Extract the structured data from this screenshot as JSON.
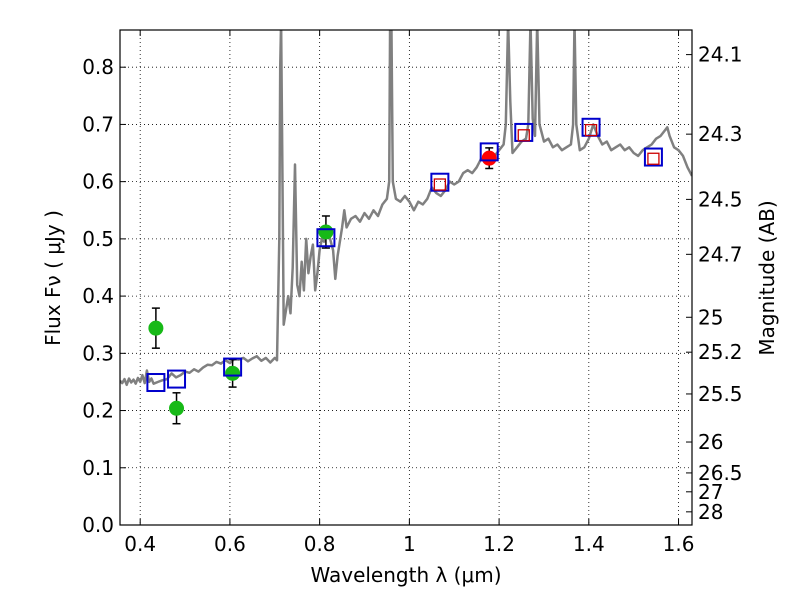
{
  "chart_data": {
    "type": "scatter",
    "xlabel": "Wavelength  λ (μm)",
    "ylabel_left": "Flux  Fν  ( μJy )",
    "ylabel_right": "Magnitude (AB)",
    "xlim": [
      0.355,
      1.63
    ],
    "ylim": [
      0.0,
      0.865
    ],
    "grid": true,
    "x_ticks": [
      0.4,
      0.6,
      0.8,
      1.0,
      1.2,
      1.4,
      1.6
    ],
    "x_tick_labels": [
      "0.4",
      "0.6",
      "0.8",
      "1",
      "1.2",
      "1.4",
      "1.6"
    ],
    "y_ticks": [
      0.0,
      0.1,
      0.2,
      0.3,
      0.4,
      0.5,
      0.6,
      0.7,
      0.8
    ],
    "y_tick_labels": [
      "0.0",
      "0.1",
      "0.2",
      "0.3",
      "0.4",
      "0.5",
      "0.6",
      "0.7",
      "0.8"
    ],
    "right_axis_ticks": [
      {
        "label": "24.1",
        "flux": 0.822
      },
      {
        "label": "24.3",
        "flux": 0.683
      },
      {
        "label": "24.5",
        "flux": 0.569
      },
      {
        "label": "24.7",
        "flux": 0.473
      },
      {
        "label": "25",
        "flux": 0.363
      },
      {
        "label": "25.2",
        "flux": 0.302
      },
      {
        "label": "25.5",
        "flux": 0.229
      },
      {
        "label": "26",
        "flux": 0.145
      },
      {
        "label": "26.5",
        "flux": 0.091
      },
      {
        "label": "27",
        "flux": 0.058
      },
      {
        "label": "28",
        "flux": 0.023
      }
    ],
    "series": [
      {
        "name": "model spectrum",
        "kind": "line",
        "color": "#808080",
        "points": [
          [
            0.355,
            0.252
          ],
          [
            0.36,
            0.248
          ],
          [
            0.365,
            0.255
          ],
          [
            0.37,
            0.245
          ],
          [
            0.375,
            0.256
          ],
          [
            0.38,
            0.249
          ],
          [
            0.385,
            0.254
          ],
          [
            0.39,
            0.247
          ],
          [
            0.395,
            0.257
          ],
          [
            0.4,
            0.25
          ],
          [
            0.405,
            0.262
          ],
          [
            0.41,
            0.248
          ],
          [
            0.415,
            0.27
          ],
          [
            0.42,
            0.25
          ],
          [
            0.425,
            0.256
          ],
          [
            0.43,
            0.247
          ],
          [
            0.44,
            0.25
          ],
          [
            0.45,
            0.253
          ],
          [
            0.46,
            0.255
          ],
          [
            0.47,
            0.265
          ],
          [
            0.48,
            0.258
          ],
          [
            0.49,
            0.262
          ],
          [
            0.5,
            0.268
          ],
          [
            0.51,
            0.266
          ],
          [
            0.52,
            0.272
          ],
          [
            0.53,
            0.268
          ],
          [
            0.54,
            0.275
          ],
          [
            0.55,
            0.28
          ],
          [
            0.56,
            0.279
          ],
          [
            0.57,
            0.285
          ],
          [
            0.58,
            0.282
          ],
          [
            0.59,
            0.288
          ],
          [
            0.6,
            0.283
          ],
          [
            0.61,
            0.29
          ],
          [
            0.62,
            0.289
          ],
          [
            0.63,
            0.292
          ],
          [
            0.64,
            0.286
          ],
          [
            0.65,
            0.291
          ],
          [
            0.66,
            0.295
          ],
          [
            0.67,
            0.287
          ],
          [
            0.68,
            0.292
          ],
          [
            0.69,
            0.284
          ],
          [
            0.7,
            0.292
          ],
          [
            0.705,
            0.288
          ],
          [
            0.71,
            0.5
          ],
          [
            0.712,
            0.8
          ],
          [
            0.714,
            0.88
          ],
          [
            0.716,
            0.7
          ],
          [
            0.72,
            0.35
          ],
          [
            0.73,
            0.4
          ],
          [
            0.735,
            0.37
          ],
          [
            0.74,
            0.45
          ],
          [
            0.745,
            0.63
          ],
          [
            0.75,
            0.42
          ],
          [
            0.755,
            0.4
          ],
          [
            0.76,
            0.46
          ],
          [
            0.765,
            0.41
          ],
          [
            0.77,
            0.5
          ],
          [
            0.775,
            0.44
          ],
          [
            0.78,
            0.47
          ],
          [
            0.785,
            0.49
          ],
          [
            0.79,
            0.41
          ],
          [
            0.795,
            0.44
          ],
          [
            0.8,
            0.48
          ],
          [
            0.805,
            0.5
          ],
          [
            0.81,
            0.495
          ],
          [
            0.82,
            0.51
          ],
          [
            0.83,
            0.48
          ],
          [
            0.835,
            0.43
          ],
          [
            0.84,
            0.47
          ],
          [
            0.85,
            0.52
          ],
          [
            0.855,
            0.55
          ],
          [
            0.86,
            0.52
          ],
          [
            0.87,
            0.535
          ],
          [
            0.88,
            0.54
          ],
          [
            0.89,
            0.53
          ],
          [
            0.9,
            0.545
          ],
          [
            0.91,
            0.535
          ],
          [
            0.92,
            0.55
          ],
          [
            0.93,
            0.54
          ],
          [
            0.94,
            0.56
          ],
          [
            0.95,
            0.57
          ],
          [
            0.955,
            0.6
          ],
          [
            0.957,
            0.88
          ],
          [
            0.96,
            0.88
          ],
          [
            0.963,
            0.6
          ],
          [
            0.97,
            0.57
          ],
          [
            0.98,
            0.565
          ],
          [
            0.99,
            0.575
          ],
          [
            1.0,
            0.565
          ],
          [
            1.01,
            0.55
          ],
          [
            1.02,
            0.565
          ],
          [
            1.03,
            0.56
          ],
          [
            1.04,
            0.57
          ],
          [
            1.05,
            0.59
          ],
          [
            1.06,
            0.58
          ],
          [
            1.07,
            0.575
          ],
          [
            1.08,
            0.585
          ],
          [
            1.09,
            0.6
          ],
          [
            1.1,
            0.595
          ],
          [
            1.11,
            0.6
          ],
          [
            1.12,
            0.615
          ],
          [
            1.13,
            0.62
          ],
          [
            1.14,
            0.615
          ],
          [
            1.15,
            0.625
          ],
          [
            1.16,
            0.64
          ],
          [
            1.17,
            0.635
          ],
          [
            1.18,
            0.65
          ],
          [
            1.19,
            0.645
          ],
          [
            1.2,
            0.655
          ],
          [
            1.21,
            0.665
          ],
          [
            1.215,
            0.7
          ],
          [
            1.22,
            0.88
          ],
          [
            1.225,
            0.74
          ],
          [
            1.23,
            0.65
          ],
          [
            1.24,
            0.66
          ],
          [
            1.25,
            0.67
          ],
          [
            1.26,
            0.675
          ],
          [
            1.265,
            0.7
          ],
          [
            1.27,
            0.88
          ],
          [
            1.275,
            0.71
          ],
          [
            1.28,
            0.68
          ],
          [
            1.285,
            0.88
          ],
          [
            1.29,
            0.7
          ],
          [
            1.3,
            0.67
          ],
          [
            1.31,
            0.675
          ],
          [
            1.32,
            0.66
          ],
          [
            1.33,
            0.665
          ],
          [
            1.34,
            0.655
          ],
          [
            1.35,
            0.66
          ],
          [
            1.36,
            0.665
          ],
          [
            1.365,
            0.7
          ],
          [
            1.368,
            0.88
          ],
          [
            1.372,
            0.7
          ],
          [
            1.38,
            0.655
          ],
          [
            1.39,
            0.66
          ],
          [
            1.4,
            0.675
          ],
          [
            1.41,
            0.7
          ],
          [
            1.42,
            0.68
          ],
          [
            1.43,
            0.665
          ],
          [
            1.44,
            0.67
          ],
          [
            1.45,
            0.655
          ],
          [
            1.46,
            0.66
          ],
          [
            1.47,
            0.665
          ],
          [
            1.48,
            0.655
          ],
          [
            1.49,
            0.66
          ],
          [
            1.5,
            0.65
          ],
          [
            1.51,
            0.645
          ],
          [
            1.52,
            0.655
          ],
          [
            1.53,
            0.66
          ],
          [
            1.54,
            0.665
          ],
          [
            1.55,
            0.675
          ],
          [
            1.56,
            0.68
          ],
          [
            1.57,
            0.69
          ],
          [
            1.575,
            0.695
          ],
          [
            1.58,
            0.68
          ],
          [
            1.59,
            0.66
          ],
          [
            1.6,
            0.655
          ],
          [
            1.61,
            0.645
          ],
          [
            1.62,
            0.625
          ],
          [
            1.63,
            0.61
          ]
        ]
      },
      {
        "name": "observed (green)",
        "kind": "points",
        "color": "#17b917",
        "points": [
          {
            "x": 0.435,
            "y": 0.344,
            "err": 0.035
          },
          {
            "x": 0.481,
            "y": 0.204,
            "err": 0.027
          },
          {
            "x": 0.606,
            "y": 0.265,
            "err": 0.024
          },
          {
            "x": 0.814,
            "y": 0.512,
            "err": 0.028
          }
        ]
      },
      {
        "name": "observed (red)",
        "kind": "points",
        "color": "#ff0000",
        "points": [
          {
            "x": 1.178,
            "y": 0.641,
            "err": 0.018
          }
        ]
      },
      {
        "name": "model photometry",
        "kind": "squares",
        "color": "#0000cc",
        "points": [
          {
            "x": 0.435,
            "y": 0.249
          },
          {
            "x": 0.481,
            "y": 0.255
          },
          {
            "x": 0.606,
            "y": 0.276
          },
          {
            "x": 0.814,
            "y": 0.502
          },
          {
            "x": 1.068,
            "y": 0.599
          },
          {
            "x": 1.178,
            "y": 0.652
          },
          {
            "x": 1.255,
            "y": 0.686
          },
          {
            "x": 1.405,
            "y": 0.695
          },
          {
            "x": 1.544,
            "y": 0.643
          }
        ]
      },
      {
        "name": "model photometry (inner)",
        "kind": "small-squares",
        "color": "#cc0000",
        "points": [
          {
            "x": 1.068,
            "y": 0.595
          },
          {
            "x": 1.255,
            "y": 0.681
          },
          {
            "x": 1.405,
            "y": 0.69
          },
          {
            "x": 1.544,
            "y": 0.64
          }
        ]
      }
    ]
  }
}
